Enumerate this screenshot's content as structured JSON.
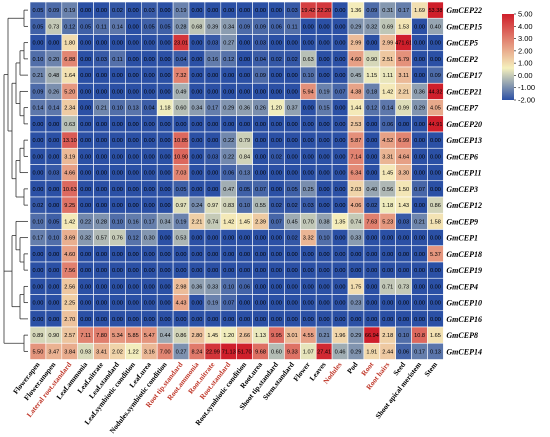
{
  "chart_data": {
    "type": "heatmap",
    "title": "",
    "xlabel": "",
    "ylabel": "",
    "legend": {
      "position": "right",
      "ticks": [
        "5.00",
        "4.00",
        "3.00",
        "2.00",
        "1.00",
        "0.00",
        "-1.00",
        "-2.00"
      ],
      "range": [
        -2,
        5
      ],
      "colors": {
        "low": "#2b50a5",
        "mid": "#f5f0bd",
        "high": "#cf1f2b"
      }
    },
    "label_colors": {
      "normal": "#000000",
      "highlight": "#c0392b"
    },
    "x": [
      {
        "label": "Flower.open",
        "highlight": false
      },
      {
        "label": "Flower.unopen",
        "highlight": false
      },
      {
        "label": "Lateral root.standard",
        "highlight": true
      },
      {
        "label": "Leaf.ammonia",
        "highlight": false
      },
      {
        "label": "Leaf.nitrate",
        "highlight": false
      },
      {
        "label": "Leaf.standard",
        "highlight": false
      },
      {
        "label": "Leaf.symbiotic condition",
        "highlight": false
      },
      {
        "label": "Leaf.urea",
        "highlight": false
      },
      {
        "label": "Nodules.symbiotic condition",
        "highlight": false
      },
      {
        "label": "Root tip.standard",
        "highlight": true
      },
      {
        "label": "Root.ammonia",
        "highlight": true
      },
      {
        "label": "Root.nitrate",
        "highlight": true
      },
      {
        "label": "Root.standard",
        "highlight": true
      },
      {
        "label": "Root.symbiotic condition",
        "highlight": false
      },
      {
        "label": "Root.urea",
        "highlight": false
      },
      {
        "label": "Shoot tip.standard",
        "highlight": false
      },
      {
        "label": "Stem.standard",
        "highlight": false
      },
      {
        "label": "Flower",
        "highlight": false
      },
      {
        "label": "Leaves",
        "highlight": false
      },
      {
        "label": "Nodules",
        "highlight": true
      },
      {
        "label": "Pod",
        "highlight": false
      },
      {
        "label": "Root",
        "highlight": true
      },
      {
        "label": "Root hairs",
        "highlight": true
      },
      {
        "label": "Seed",
        "highlight": false
      },
      {
        "label": "Shoot apical meristem",
        "highlight": false
      },
      {
        "label": "Stem",
        "highlight": false
      }
    ],
    "y": [
      "GmCEP22",
      "GmCEP15",
      "GmCEP5",
      "GmCEP2",
      "GmCEP17",
      "GmCEP21",
      "GmCEP7",
      "GmCEP20",
      "GmCEP13",
      "GmCEP6",
      "GmCEP11",
      "GmCEP3",
      "GmCEP12",
      "GmCEP9",
      "GmCEP1",
      "GmCEP18",
      "GmCEP19",
      "GmCEP4",
      "GmCEP10",
      "GmCEP16",
      "GmCEP8",
      "GmCEP14"
    ],
    "values": [
      [
        "0.05",
        "0.09",
        "0.19",
        "0.00",
        "0.00",
        "0.02",
        "0.00",
        "0.03",
        "0.00",
        "0.19",
        "0.00",
        "0.00",
        "0.00",
        "0.00",
        "0.00",
        "0.00",
        "0.03",
        "19.42",
        "22.20",
        "0.00",
        "1.36",
        "0.09",
        "0.31",
        "0.17",
        "1.69",
        "53.38"
      ],
      [
        "0.05",
        "0.73",
        "0.12",
        "0.05",
        "0.11",
        "0.14",
        "0.00",
        "0.05",
        "0.05",
        "0.28",
        "0.68",
        "0.39",
        "0.34",
        "0.09",
        "0.09",
        "0.06",
        "0.11",
        "0.00",
        "0.00",
        "0.00",
        "0.29",
        "0.32",
        "0.69",
        "1.53",
        "0.00",
        "0.40"
      ],
      [
        "0.00",
        "0.00",
        "1.80",
        "0.00",
        "0.00",
        "0.00",
        "0.00",
        "0.00",
        "0.00",
        "23.01",
        "0.00",
        "0.03",
        "0.27",
        "0.00",
        "0.03",
        "0.00",
        "0.00",
        "0.00",
        "0.00",
        "0.00",
        "2.99",
        "0.00",
        "2.99",
        "471.61",
        "0.00",
        "0.00"
      ],
      [
        "0.10",
        "0.20",
        "6.88",
        "0.00",
        "0.03",
        "0.11",
        "0.00",
        "0.00",
        "0.00",
        "0.04",
        "0.00",
        "0.16",
        "0.12",
        "0.00",
        "0.04",
        "0.02",
        "0.02",
        "0.63",
        "0.00",
        "0.00",
        "4.60",
        "0.90",
        "2.51",
        "5.79",
        "0.00",
        "0.00"
      ],
      [
        "0.21",
        "0.48",
        "1.64",
        "0.00",
        "0.00",
        "0.00",
        "0.00",
        "0.00",
        "0.00",
        "7.32",
        "0.00",
        "0.00",
        "0.00",
        "0.00",
        "0.09",
        "0.00",
        "0.00",
        "0.10",
        "0.00",
        "0.00",
        "0.45",
        "1.15",
        "1.11",
        "3.11",
        "0.00",
        "0.09"
      ],
      [
        "0.09",
        "0.26",
        "5.20",
        "0.00",
        "0.00",
        "0.00",
        "0.00",
        "0.00",
        "0.00",
        "0.49",
        "0.00",
        "0.00",
        "0.00",
        "0.00",
        "0.00",
        "0.00",
        "0.00",
        "5.94",
        "0.19",
        "0.07",
        "4.38",
        "0.18",
        "1.42",
        "2.21",
        "0.36",
        "44.32"
      ],
      [
        "0.14",
        "0.14",
        "2.34",
        "0.00",
        "0.21",
        "0.10",
        "0.13",
        "0.04",
        "1.18",
        "0.60",
        "0.34",
        "0.17",
        "0.29",
        "0.36",
        "0.26",
        "1.20",
        "0.37",
        "0.00",
        "0.15",
        "0.00",
        "1.44",
        "0.12",
        "0.14",
        "0.99",
        "0.29",
        "4.05"
      ],
      [
        "0.00",
        "0.00",
        "0.63",
        "0.00",
        "0.00",
        "0.00",
        "0.00",
        "0.00",
        "0.00",
        "0.00",
        "0.00",
        "0.00",
        "0.00",
        "0.00",
        "0.00",
        "0.00",
        "0.00",
        "0.00",
        "0.00",
        "0.00",
        "2.53",
        "0.00",
        "0.06",
        "0.00",
        "0.00",
        "44.91"
      ],
      [
        "0.00",
        "0.00",
        "13.10",
        "0.00",
        "0.00",
        "0.00",
        "0.00",
        "0.00",
        "0.00",
        "10.85",
        "0.00",
        "0.00",
        "0.22",
        "0.79",
        "0.00",
        "0.00",
        "0.00",
        "0.00",
        "0.00",
        "0.00",
        "5.87",
        "0.00",
        "4.52",
        "6.99",
        "0.00",
        "0.00"
      ],
      [
        "0.00",
        "0.00",
        "3.19",
        "0.00",
        "0.00",
        "0.00",
        "0.00",
        "0.00",
        "0.00",
        "10.90",
        "0.00",
        "0.03",
        "0.22",
        "0.84",
        "0.00",
        "0.02",
        "0.00",
        "0.00",
        "0.00",
        "0.00",
        "7.14",
        "0.00",
        "3.31",
        "4.64",
        "0.00",
        "0.00"
      ],
      [
        "0.00",
        "0.03",
        "4.66",
        "0.00",
        "0.00",
        "0.00",
        "0.00",
        "0.00",
        "0.00",
        "7.03",
        "0.00",
        "0.00",
        "0.06",
        "0.13",
        "0.00",
        "0.00",
        "0.00",
        "0.00",
        "0.00",
        "0.00",
        "6.34",
        "0.00",
        "1.45",
        "3.30",
        "0.00",
        "0.00"
      ],
      [
        "0.00",
        "0.00",
        "10.63",
        "0.00",
        "0.00",
        "0.00",
        "0.00",
        "0.00",
        "0.00",
        "0.05",
        "0.00",
        "0.00",
        "0.47",
        "0.05",
        "0.07",
        "0.00",
        "0.05",
        "0.25",
        "0.00",
        "0.00",
        "2.03",
        "0.40",
        "0.56",
        "1.50",
        "0.07",
        "0.00"
      ],
      [
        "0.02",
        "0.00",
        "9.25",
        "0.00",
        "0.00",
        "0.00",
        "0.00",
        "0.00",
        "0.00",
        "0.97",
        "0.24",
        "0.97",
        "0.83",
        "0.10",
        "0.55",
        "0.02",
        "0.02",
        "0.03",
        "0.00",
        "0.00",
        "4.06",
        "0.02",
        "1.18",
        "1.43",
        "0.00",
        "0.86"
      ],
      [
        "0.10",
        "0.05",
        "1.42",
        "0.22",
        "0.28",
        "0.10",
        "0.16",
        "0.17",
        "0.34",
        "0.19",
        "2.21",
        "0.74",
        "1.42",
        "1.45",
        "2.39",
        "0.07",
        "0.45",
        "0.70",
        "0.38",
        "1.35",
        "0.74",
        "7.63",
        "5.23",
        "0.03",
        "0.21",
        "1.58"
      ],
      [
        "0.17",
        "0.10",
        "3.69",
        "0.32",
        "0.57",
        "0.76",
        "0.12",
        "0.30",
        "0.00",
        "0.53",
        "0.00",
        "0.00",
        "0.00",
        "0.00",
        "0.00",
        "0.00",
        "0.02",
        "3.32",
        "0.10",
        "0.00",
        "0.33",
        "0.00",
        "0.00",
        "0.00",
        "0.00",
        "0.00"
      ],
      [
        "0.00",
        "0.00",
        "4.60",
        "0.00",
        "0.00",
        "0.00",
        "0.00",
        "0.00",
        "0.00",
        "0.00",
        "0.00",
        "0.00",
        "0.00",
        "0.00",
        "0.00",
        "0.00",
        "0.00",
        "0.00",
        "0.00",
        "0.00",
        "0.00",
        "0.00",
        "0.00",
        "0.00",
        "0.00",
        "5.37"
      ],
      [
        "0.00",
        "0.00",
        "7.56",
        "0.00",
        "0.00",
        "0.00",
        "0.00",
        "0.00",
        "0.00",
        "0.00",
        "0.00",
        "0.00",
        "0.00",
        "0.00",
        "0.00",
        "0.00",
        "0.00",
        "0.00",
        "0.00",
        "0.00",
        "0.00",
        "0.00",
        "0.00",
        "0.00",
        "0.00",
        "0.00"
      ],
      [
        "0.00",
        "0.00",
        "2.56",
        "0.00",
        "0.00",
        "0.00",
        "0.00",
        "0.00",
        "0.00",
        "2.98",
        "0.36",
        "0.33",
        "0.10",
        "0.06",
        "0.00",
        "0.00",
        "0.00",
        "0.00",
        "0.00",
        "0.00",
        "1.75",
        "0.00",
        "0.71",
        "0.73",
        "0.00",
        "0.00"
      ],
      [
        "0.00",
        "0.00",
        "2.25",
        "0.00",
        "0.00",
        "0.00",
        "0.00",
        "0.00",
        "0.00",
        "4.43",
        "0.00",
        "0.19",
        "0.07",
        "0.00",
        "0.00",
        "0.00",
        "0.00",
        "0.00",
        "0.00",
        "0.00",
        "0.23",
        "0.00",
        "0.00",
        "0.00",
        "0.00",
        "0.00"
      ],
      [
        "0.00",
        "0.00",
        "2.70",
        "0.00",
        "0.00",
        "0.00",
        "0.00",
        "0.00",
        "0.00",
        "0.00",
        "0.00",
        "0.00",
        "0.00",
        "0.00",
        "0.00",
        "0.00",
        "0.00",
        "0.00",
        "0.00",
        "0.00",
        "0.00",
        "0.00",
        "0.00",
        "0.00",
        "0.00",
        "0.00"
      ],
      [
        "0.89",
        "0.90",
        "2.57",
        "7.11",
        "7.80",
        "5.34",
        "5.85",
        "5.47",
        "0.44",
        "0.86",
        "2.80",
        "1.45",
        "1.20",
        "2.66",
        "1.13",
        "9.95",
        "3.01",
        "4.55",
        "0.21",
        "1.96",
        "0.29",
        "66.94",
        "2.18",
        "0.10",
        "10.8",
        "1.65"
      ],
      [
        "5.50",
        "3.47",
        "3.84",
        "0.93",
        "3.41",
        "2.02",
        "1.22",
        "3.16",
        "7.00",
        "0.27",
        "8.24",
        "22.99",
        "71.13",
        "51.70",
        "9.68",
        "0.60",
        "9.33",
        "1.07",
        "27.41",
        "0.46",
        "0.29",
        "1.91",
        "2.44",
        "0.06",
        "0.17",
        "0.13"
      ]
    ]
  }
}
